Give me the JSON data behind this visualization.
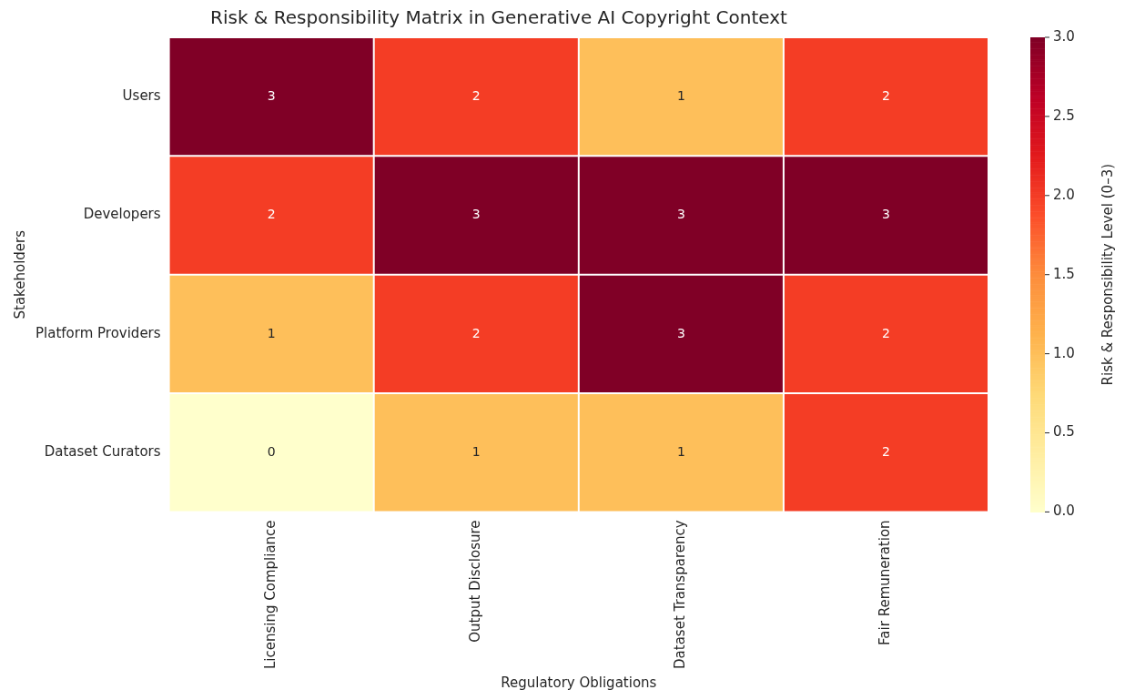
{
  "chart_data": {
    "type": "heatmap",
    "title": "Risk & Responsibility Matrix in Generative AI Copyright Context",
    "xlabel": "Regulatory Obligations",
    "ylabel": "Stakeholders",
    "clabel": "Risk & Responsibility Level (0–3)",
    "categories": [
      "Licensing Compliance",
      "Output Disclosure",
      "Dataset Transparency",
      "Fair Remuneration"
    ],
    "y_categories": [
      "Users",
      "Developers",
      "Platform Providers",
      "Dataset Curators"
    ],
    "cells": [
      [
        3,
        2,
        1,
        2
      ],
      [
        2,
        3,
        3,
        3
      ],
      [
        1,
        2,
        3,
        2
      ],
      [
        0,
        1,
        1,
        2
      ]
    ],
    "clim": [
      0,
      3
    ],
    "cticks": [
      {
        "value": 0,
        "label": "0.0"
      },
      {
        "value": 0.5,
        "label": "0.5"
      },
      {
        "value": 1,
        "label": "1.0"
      },
      {
        "value": 1.5,
        "label": "1.5"
      },
      {
        "value": 2,
        "label": "2.0"
      },
      {
        "value": 2.5,
        "label": "2.5"
      },
      {
        "value": 3,
        "label": "3.0"
      }
    ],
    "data_labels": true
  }
}
